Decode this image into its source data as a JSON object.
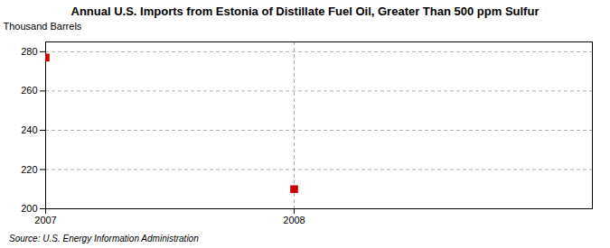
{
  "chart_data": {
    "type": "scatter",
    "title": "Annual U.S. Imports from Estonia of Distillate Fuel Oil, Greater Than 500 ppm Sulfur",
    "ylabel": "Thousand Barrels",
    "source": "Source: U.S. Energy Information Administration",
    "x": [
      2007,
      2008
    ],
    "values": [
      277,
      210
    ],
    "color": "#cc0000",
    "marker": "square",
    "xlim": [
      2007.0,
      2009.2
    ],
    "ylim": [
      200,
      285
    ],
    "xticks": [
      2007,
      2008
    ],
    "yticks": [
      200,
      220,
      240,
      260,
      280
    ],
    "grid": true
  }
}
